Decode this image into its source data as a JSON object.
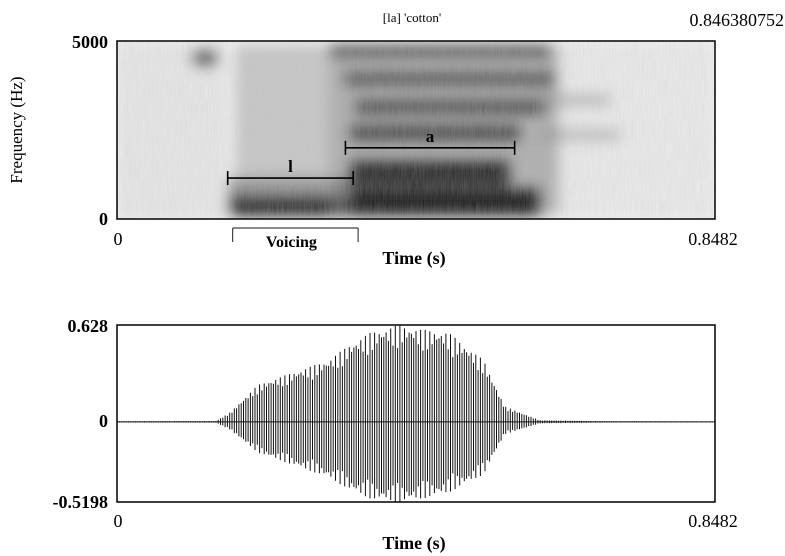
{
  "title": "[la] 'cotton'",
  "chart_data": [
    {
      "type": "heatmap",
      "title": "[la] 'cotton'",
      "xlabel": "Time (s)",
      "ylabel": "Frequency (Hz)",
      "xlim": [
        0,
        0.8482
      ],
      "ylim": [
        0,
        5000
      ],
      "x_tick_labels": [
        "0",
        "0.8482"
      ],
      "y_tick_labels": [
        "0",
        "5000"
      ],
      "top_right_label": "0.846380752",
      "annotations": [
        {
          "label": "l",
          "x_start": 0.157,
          "x_end": 0.335,
          "y": 1150
        },
        {
          "label": "a",
          "x_start": 0.324,
          "x_end": 0.564,
          "y": 2000
        }
      ],
      "intervals": [
        {
          "label": "Voicing",
          "x_start": 0.164,
          "x_end": 0.342
        }
      ]
    },
    {
      "type": "line",
      "title": "",
      "xlabel": "Time (s)",
      "ylabel": "",
      "xlim": [
        0,
        0.8482
      ],
      "ylim": [
        -0.5198,
        0.628
      ],
      "x_tick_labels": [
        "0",
        "0.8482"
      ],
      "y_tick_labels": [
        "0.628",
        "0",
        "-0.5198"
      ],
      "envelope": {
        "x": [
          0,
          0.14,
          0.16,
          0.2,
          0.25,
          0.3,
          0.33,
          0.36,
          0.4,
          0.43,
          0.47,
          0.52,
          0.55,
          0.6,
          0.7,
          0.8482
        ],
        "upper": [
          0.004,
          0.005,
          0.06,
          0.24,
          0.32,
          0.4,
          0.5,
          0.58,
          0.628,
          0.6,
          0.58,
          0.4,
          0.1,
          0.01,
          0.004,
          0.003
        ],
        "lower": [
          -0.004,
          -0.005,
          -0.05,
          -0.2,
          -0.28,
          -0.36,
          -0.44,
          -0.5,
          -0.5198,
          -0.5,
          -0.46,
          -0.34,
          -0.08,
          -0.01,
          -0.004,
          -0.003
        ]
      }
    }
  ]
}
